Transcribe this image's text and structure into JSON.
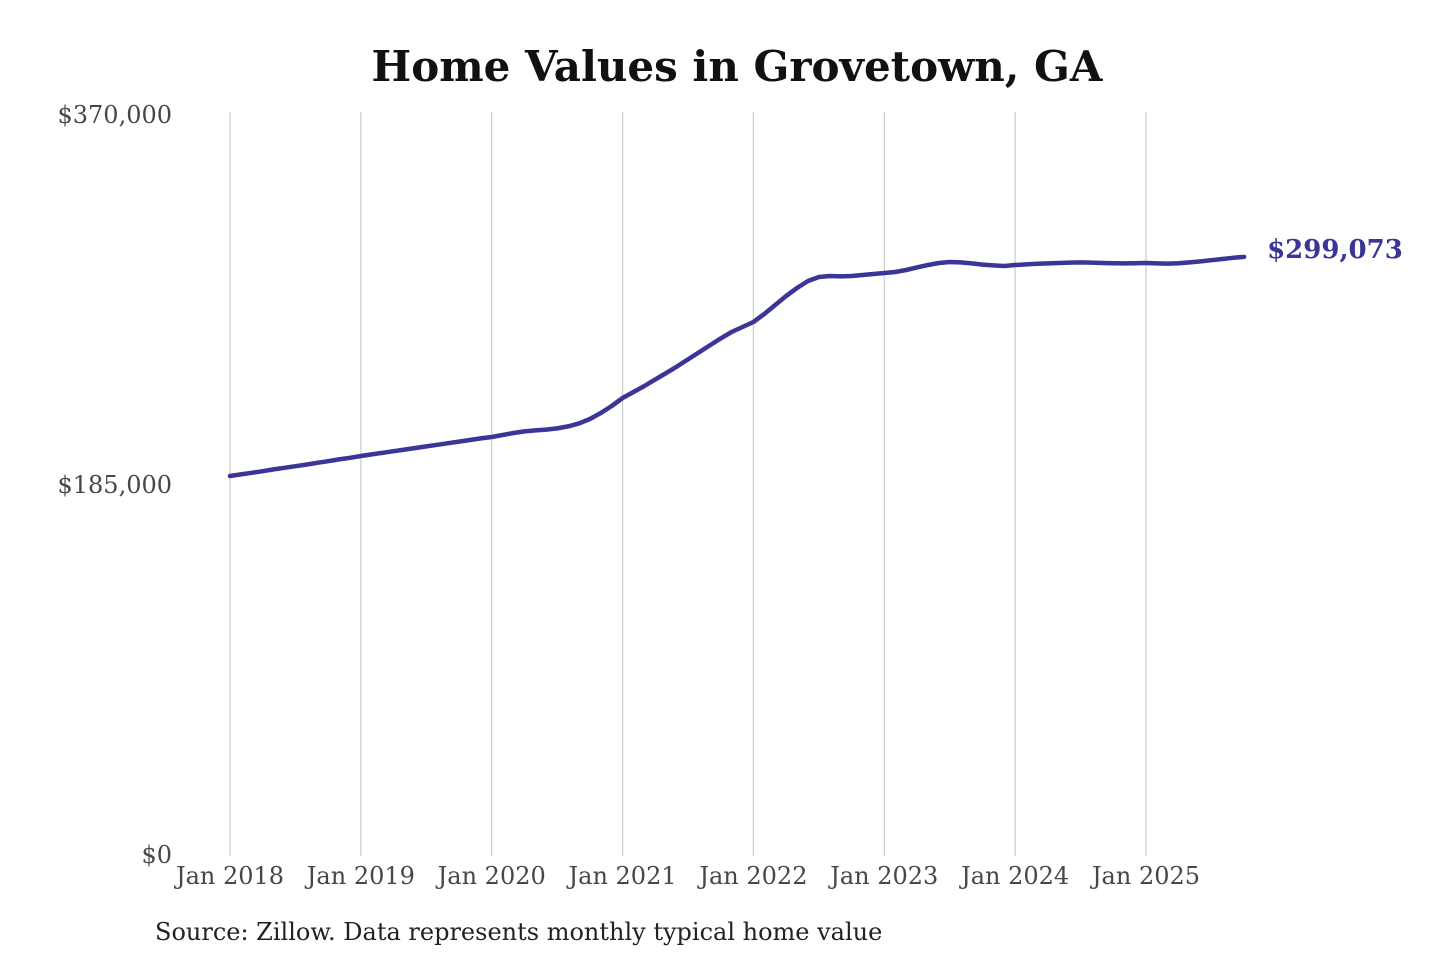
{
  "title": "Home Values in Grovetown, GA",
  "source_note": "Source: Zillow. Data represents monthly typical home value",
  "end_label": "$299,073",
  "colors": {
    "line": "#3b3597",
    "end_label": "#3b3597",
    "grid": "#cccccc",
    "axis_text": "#474747",
    "title_text": "#111111",
    "source_text": "#222222",
    "background": "#ffffff"
  },
  "chart_data": {
    "type": "line",
    "title": "Home Values in Grovetown, GA",
    "xlabel": "",
    "ylabel": "",
    "ylim": [
      0,
      370000
    ],
    "grid": "vertical-only",
    "legend_position": "none",
    "x_start_month": "2018-01",
    "x_end_month": "2025-10",
    "x_tick_labels": [
      "Jan 2018",
      "Jan 2019",
      "Jan 2020",
      "Jan 2021",
      "Jan 2022",
      "Jan 2023",
      "Jan 2024",
      "Jan 2025"
    ],
    "y_ticks": [
      {
        "value": 0,
        "label": "$0"
      },
      {
        "value": 185000,
        "label": "$185,000"
      },
      {
        "value": 370000,
        "label": "$370,000"
      }
    ],
    "series": [
      {
        "name": "Monthly typical home value",
        "final_value": 299073,
        "values": [
          189500,
          190300,
          191100,
          191900,
          192800,
          193600,
          194400,
          195200,
          196100,
          196900,
          197800,
          198600,
          199500,
          200300,
          201100,
          201900,
          202700,
          203500,
          204300,
          205100,
          205900,
          206700,
          207500,
          208300,
          209000,
          210000,
          211000,
          211800,
          212300,
          212700,
          213300,
          214300,
          215800,
          218000,
          221000,
          224500,
          228500,
          231500,
          234500,
          237800,
          241000,
          244300,
          247800,
          251300,
          254800,
          258300,
          261500,
          264000,
          266500,
          270500,
          275000,
          279500,
          283500,
          287000,
          289000,
          289500,
          289300,
          289500,
          290000,
          290500,
          291000,
          291500,
          292500,
          293800,
          295000,
          296000,
          296500,
          296300,
          295800,
          295200,
          294800,
          294500,
          295000,
          295300,
          295600,
          295800,
          296000,
          296200,
          296300,
          296200,
          296000,
          295900,
          295800,
          295900,
          296000,
          295800,
          295700,
          295900,
          296300,
          296800,
          297400,
          298000,
          298600,
          299073
        ]
      }
    ]
  }
}
